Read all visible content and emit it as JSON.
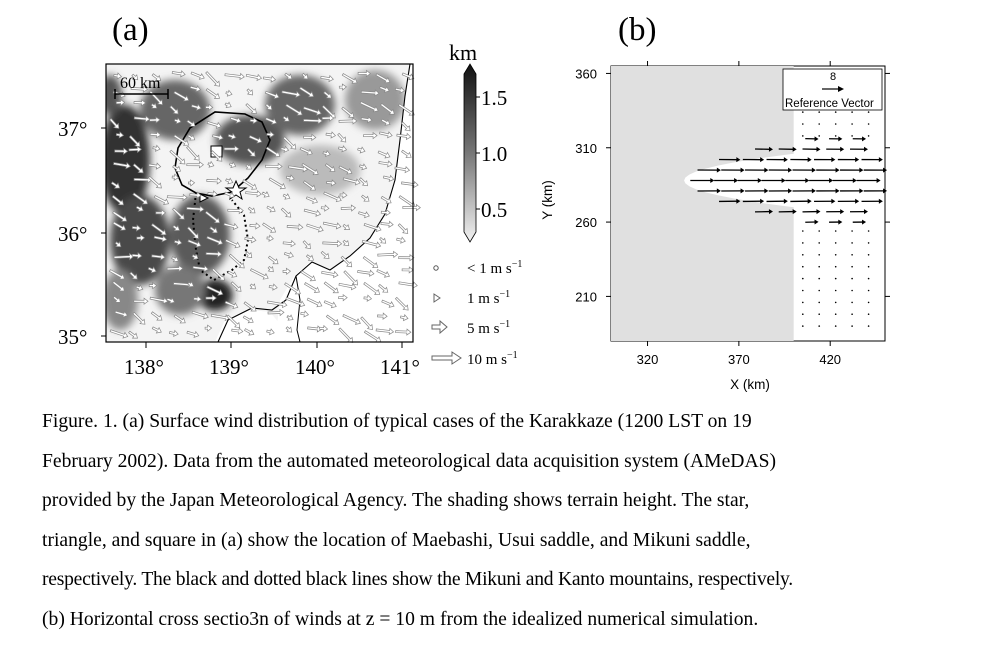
{
  "panels": {
    "a": {
      "label": "(a)",
      "scale_bar": "60 km",
      "lat_ticks": [
        "37°",
        "36°",
        "35°"
      ],
      "lon_ticks": [
        "138°",
        "139°",
        "140°",
        "141°"
      ],
      "colorbar": {
        "unit": "km",
        "ticks": [
          "1.5",
          "1.0",
          "0.5"
        ]
      },
      "legend": [
        {
          "symbol": "circle",
          "label": "< 1 m s",
          "sup": "−1"
        },
        {
          "symbol": "triangle",
          "label": "1 m s",
          "sup": "−1"
        },
        {
          "symbol": "arrow-small",
          "label": "5 m s",
          "sup": "−1"
        },
        {
          "symbol": "arrow-large",
          "label": "10 m s",
          "sup": "−1"
        }
      ]
    },
    "b": {
      "label": "(b)",
      "ylabel": "Y (km)",
      "xlabel": "X (km)",
      "reference_value": "8",
      "reference_label": "Reference Vector"
    }
  },
  "chart_data": {
    "type": "scatter",
    "x_ticks": [
      320,
      370,
      420
    ],
    "y_ticks": [
      360,
      310,
      260,
      210
    ],
    "xlim": [
      300,
      450
    ],
    "ylim": [
      180,
      365
    ],
    "xlabel": "X (km)",
    "ylabel": "Y (km)",
    "shaded_region": "terrain block west of x≈400 km",
    "jet": {
      "y_center": 288,
      "x_start": 345,
      "x_end": 450,
      "direction": "eastward"
    },
    "reference_vector": 8
  },
  "caption": {
    "lines": [
      "Figure. 1. (a) Surface wind distribution of typical cases of the Karakkaze (1200 LST on 19",
      "February 2002). Data from the automated meteorological data acquisition system (AMeDAS)",
      "provided by the Japan Meteorological Agency. The shading shows terrain height. The star,",
      "triangle, and square in (a) show the location of Maebashi, Usui saddle, and Mikuni saddle,",
      "respectively. The black and dotted black lines show the Mikuni and Kanto mountains, respectively.",
      "(b) Horizontal cross sectio3n of winds at z = 10 m from the idealized numerical simulation."
    ]
  }
}
